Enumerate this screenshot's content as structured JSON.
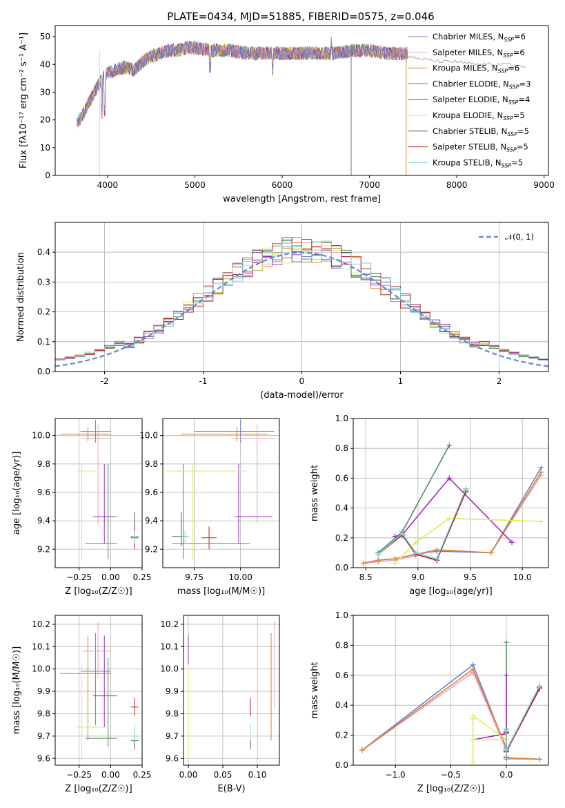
{
  "figure_title": "PLATE=0434, MJD=51885, FIBERID=0575, z=0.046",
  "colors": [
    "#6b7fd0",
    "#e9a0c0",
    "#d9822b",
    "#4f8a5b",
    "#9a2bb5",
    "#d8ee5a",
    "#555555",
    "#b52020",
    "#7fd4e0"
  ],
  "chart_data": [
    {
      "id": "spectrum",
      "type": "line",
      "xlabel": "wavelength [Angstrom, rest frame]",
      "ylabel": "Flux [fλ10⁻¹⁷ erg cm⁻² s⁻¹ A⁻¹]",
      "xlim": [
        3400,
        9050
      ],
      "ylim": [
        0,
        54
      ],
      "xticks": [
        4000,
        5000,
        6000,
        7000,
        8000,
        9000
      ],
      "yticks": [
        0,
        10,
        20,
        30,
        40,
        50
      ],
      "grid": false,
      "legend": "top-right",
      "continuum_x": [
        3650,
        3700,
        3800,
        3900,
        4000,
        4100,
        4200,
        4300,
        4400,
        4500,
        4600,
        4700,
        4800,
        4900,
        5000,
        5200,
        5400,
        5600,
        5800,
        6000,
        6200,
        6400,
        6600,
        6800,
        7000,
        7200,
        7400
      ],
      "continuum_y": [
        19,
        21,
        27,
        33,
        37,
        38,
        39,
        38,
        41,
        43,
        44,
        45,
        45,
        46,
        46,
        45,
        45,
        44,
        44,
        44,
        44,
        44,
        44,
        45,
        45,
        44,
        44
      ],
      "model_x": [
        7400,
        7600,
        7800,
        8000,
        8200,
        8400,
        8600,
        8800
      ],
      "model_y": [
        43,
        42,
        41,
        41,
        40,
        40,
        40,
        39
      ],
      "series": [
        {
          "name": "Chabrier MILES, N",
          "sub": "SSP",
          "suffix": "=6"
        },
        {
          "name": "Salpeter MILES, N",
          "sub": "SSP",
          "suffix": "=6"
        },
        {
          "name": "Kroupa MILES, N",
          "sub": "SSP",
          "suffix": "=6"
        },
        {
          "name": "Chabrier ELODIE, N",
          "sub": "SSP",
          "suffix": "=3"
        },
        {
          "name": "Salpeter ELODIE, N",
          "sub": "SSP",
          "suffix": "=4"
        },
        {
          "name": "Kroupa ELODIE, N",
          "sub": "SSP",
          "suffix": "=5"
        },
        {
          "name": "Chabrier STELIB, N",
          "sub": "SSP",
          "suffix": "=5"
        },
        {
          "name": "Salpeter STELIB, N",
          "sub": "SSP",
          "suffix": "=5"
        },
        {
          "name": "Kroupa STELIB, N",
          "sub": "SSP",
          "suffix": "=5"
        }
      ]
    },
    {
      "id": "residuals",
      "type": "bar",
      "xlabel": "(data-model)/error",
      "ylabel": "Normed distribution",
      "xlim": [
        -2.5,
        2.5
      ],
      "ylim": [
        0,
        0.5
      ],
      "xticks": [
        -2,
        -1,
        0,
        1,
        2
      ],
      "yticks": [
        0.0,
        0.1,
        0.2,
        0.3,
        0.4
      ],
      "grid": true,
      "legend": "top-right",
      "normal_label": "𝒩(0, 1)",
      "bin_width": 0.1
    },
    {
      "id": "age_vs_Z",
      "type": "scatter",
      "xlabel": "Z [log₁₀(Z/Z☉)]",
      "ylabel": "age  [log₁₀(age/yr)]",
      "xlim": [
        -0.44,
        0.25
      ],
      "ylim": [
        9.07,
        10.12
      ],
      "xticks": [
        -0.25,
        0.0,
        0.25
      ],
      "xticklabels": [
        "−0.25",
        "0.00",
        "0.25"
      ],
      "yticks": [
        9.2,
        9.4,
        9.6,
        9.8,
        10.0
      ],
      "grid": true,
      "points": [
        {
          "c": 0,
          "x": -0.12,
          "y": 10.03,
          "xl": -0.24,
          "xh": 0.0,
          "yl": 9.95,
          "yh": 10.11
        },
        {
          "c": 1,
          "x": -0.1,
          "y": 9.98,
          "xl": -0.22,
          "xh": 0.0,
          "yl": 9.38,
          "yh": 10.08
        },
        {
          "c": 2,
          "x": -0.18,
          "y": 10.01,
          "xl": -0.4,
          "xh": 0.0,
          "yl": 9.96,
          "yh": 10.06
        },
        {
          "c": 3,
          "x": -0.02,
          "y": 9.24,
          "xl": -0.2,
          "xh": 0.05,
          "yl": 9.13,
          "yh": 9.8
        },
        {
          "c": 4,
          "x": -0.05,
          "y": 9.43,
          "xl": -0.14,
          "xh": 0.05,
          "yl": 9.24,
          "yh": 9.8
        },
        {
          "c": 5,
          "x": -0.23,
          "y": 9.75,
          "xl": -0.27,
          "xh": -0.12,
          "yl": 9.12,
          "yh": 9.8
        },
        {
          "c": 6,
          "x": 0.19,
          "y": 9.29,
          "xl": 0.16,
          "xh": 0.22,
          "yl": 9.22,
          "yh": 9.46
        },
        {
          "c": 7,
          "x": 0.19,
          "y": 9.28,
          "xl": 0.16,
          "xh": 0.22,
          "yl": 9.2,
          "yh": 9.36
        },
        {
          "c": 8,
          "x": 0.19,
          "y": 9.29,
          "xl": 0.17,
          "xh": 0.21,
          "yl": 9.24,
          "yh": 9.33
        }
      ]
    },
    {
      "id": "age_vs_mass",
      "type": "scatter",
      "xlabel": "mass [log₁₀(M/M☉)]",
      "ylabel": "",
      "xlim": [
        9.58,
        10.21
      ],
      "ylim": [
        9.07,
        10.12
      ],
      "xticks": [
        9.75,
        10.0
      ],
      "xticklabels": [
        "9.75",
        "10.00"
      ],
      "yticks": [
        9.2,
        9.4,
        9.6,
        9.8,
        10.0
      ],
      "grid": true,
      "points": [
        {
          "c": 0,
          "x": 10.0,
          "y": 10.03,
          "xl": 9.75,
          "xh": 10.18,
          "yl": 9.95,
          "yh": 10.11
        },
        {
          "c": 1,
          "x": 10.09,
          "y": 9.98,
          "xl": 9.95,
          "xh": 10.19,
          "yl": 9.38,
          "yh": 10.08
        },
        {
          "c": 2,
          "x": 9.98,
          "y": 10.01,
          "xl": 9.68,
          "xh": 10.15,
          "yl": 9.96,
          "yh": 10.06
        },
        {
          "c": 3,
          "x": 9.69,
          "y": 9.24,
          "xl": 9.63,
          "xh": 10.05,
          "yl": 9.13,
          "yh": 9.8
        },
        {
          "c": 4,
          "x": 9.99,
          "y": 9.43,
          "xl": 9.97,
          "xh": 10.17,
          "yl": 9.24,
          "yh": 9.8
        },
        {
          "c": 5,
          "x": 9.74,
          "y": 9.75,
          "xl": 9.6,
          "xh": 10.03,
          "yl": 9.12,
          "yh": 9.8
        },
        {
          "c": 6,
          "x": 9.68,
          "y": 9.29,
          "xl": 9.63,
          "xh": 9.72,
          "yl": 9.22,
          "yh": 9.46
        },
        {
          "c": 7,
          "x": 9.83,
          "y": 9.28,
          "xl": 9.79,
          "xh": 9.87,
          "yl": 9.2,
          "yh": 9.36
        },
        {
          "c": 8,
          "x": 9.7,
          "y": 9.29,
          "xl": 9.68,
          "xh": 9.72,
          "yl": 9.24,
          "yh": 9.33
        }
      ]
    },
    {
      "id": "weight_vs_age",
      "type": "line",
      "xlabel": "age  [log₁₀(age/yr)]",
      "ylabel": "mass weight",
      "xlim": [
        8.38,
        10.25
      ],
      "ylim": [
        0,
        1
      ],
      "xticks": [
        8.5,
        9.0,
        9.5,
        10.0
      ],
      "xticklabels": [
        "8.5",
        "9.0",
        "9.5",
        "10.0"
      ],
      "yticks": [
        0.0,
        0.2,
        0.4,
        0.6,
        0.8,
        1.0
      ],
      "grid": true,
      "series": [
        {
          "c": 0,
          "x": [
            8.48,
            8.62,
            8.78,
            8.98,
            9.18,
            9.7,
            10.18
          ],
          "y": [
            0.03,
            0.05,
            0.06,
            0.09,
            0.11,
            0.1,
            0.67
          ]
        },
        {
          "c": 1,
          "x": [
            8.48,
            8.62,
            8.78,
            8.98,
            9.18,
            9.7,
            10.18
          ],
          "y": [
            0.03,
            0.04,
            0.05,
            0.08,
            0.12,
            0.1,
            0.62
          ]
        },
        {
          "c": 2,
          "x": [
            8.48,
            8.62,
            8.78,
            8.98,
            9.18,
            9.7,
            10.18
          ],
          "y": [
            0.03,
            0.05,
            0.06,
            0.09,
            0.12,
            0.1,
            0.64
          ]
        },
        {
          "c": 3,
          "x": [
            8.62,
            8.85,
            9.3
          ],
          "y": [
            0.1,
            0.24,
            0.82
          ]
        },
        {
          "c": 4,
          "x": [
            8.78,
            8.85,
            9.3,
            9.9
          ],
          "y": [
            0.21,
            0.22,
            0.6,
            0.17
          ]
        },
        {
          "c": 5,
          "x": [
            8.78,
            8.98,
            9.3,
            10.18
          ],
          "y": [
            0.03,
            0.17,
            0.33,
            0.31
          ]
        },
        {
          "c": 6,
          "x": [
            8.62,
            8.85,
            8.98,
            9.18,
            9.46
          ],
          "y": [
            0.09,
            0.22,
            0.09,
            0.05,
            0.52
          ]
        },
        {
          "c": 7,
          "x": [
            8.62,
            8.85,
            8.98,
            9.18,
            9.46
          ],
          "y": [
            0.09,
            0.22,
            0.09,
            0.05,
            0.51
          ]
        },
        {
          "c": 8,
          "x": [
            8.62,
            8.85,
            8.98,
            9.18,
            9.46
          ],
          "y": [
            0.09,
            0.23,
            0.1,
            0.06,
            0.53
          ]
        }
      ]
    },
    {
      "id": "mass_vs_Z",
      "type": "scatter",
      "xlabel": "Z [log₁₀(Z/Z☉)]",
      "ylabel": "mass [log₁₀(M/M☉)]",
      "xlim": [
        -0.44,
        0.25
      ],
      "ylim": [
        9.57,
        10.24
      ],
      "xticks": [
        -0.25,
        0.0,
        0.25
      ],
      "xticklabels": [
        "−0.25",
        "0.00",
        "0.25"
      ],
      "yticks": [
        9.6,
        9.7,
        9.8,
        9.9,
        10.0,
        10.1,
        10.2
      ],
      "grid": true,
      "points": [
        {
          "c": 0,
          "x": -0.12,
          "y": 9.99,
          "xl": -0.24,
          "xh": 0.0,
          "yl": 9.75,
          "yh": 10.16
        },
        {
          "c": 1,
          "x": -0.1,
          "y": 10.08,
          "xl": -0.22,
          "xh": 0.0,
          "yl": 9.96,
          "yh": 10.21
        },
        {
          "c": 2,
          "x": -0.18,
          "y": 9.98,
          "xl": -0.4,
          "xh": 0.0,
          "yl": 9.68,
          "yh": 10.15
        },
        {
          "c": 3,
          "x": -0.02,
          "y": 9.69,
          "xl": -0.2,
          "xh": 0.05,
          "yl": 9.65,
          "yh": 10.05
        },
        {
          "c": 4,
          "x": -0.05,
          "y": 9.88,
          "xl": -0.14,
          "xh": 0.05,
          "yl": 9.74,
          "yh": 10.15
        },
        {
          "c": 5,
          "x": -0.23,
          "y": 9.74,
          "xl": -0.27,
          "xh": -0.05,
          "yl": 9.59,
          "yh": 10.02
        },
        {
          "c": 6,
          "x": 0.19,
          "y": 9.68,
          "xl": 0.16,
          "xh": 0.22,
          "yl": 9.64,
          "yh": 9.72
        },
        {
          "c": 7,
          "x": 0.19,
          "y": 9.83,
          "xl": 0.16,
          "xh": 0.22,
          "yl": 9.79,
          "yh": 9.87
        },
        {
          "c": 8,
          "x": 0.19,
          "y": 9.7,
          "xl": 0.17,
          "xh": 0.21,
          "yl": 9.68,
          "yh": 9.75
        }
      ]
    },
    {
      "id": "mass_vs_EBV",
      "type": "scatter",
      "xlabel": "E(B-V)",
      "ylabel": "",
      "xlim": [
        -0.007,
        0.132
      ],
      "ylim": [
        9.57,
        10.24
      ],
      "xticks": [
        0.0,
        0.05,
        0.1
      ],
      "xticklabels": [
        "0.00",
        "0.05",
        "0.10"
      ],
      "yticks": [
        9.6,
        9.7,
        9.8,
        9.9,
        10.0,
        10.1,
        10.2
      ],
      "grid": true,
      "points": [
        {
          "c": 0,
          "x": 0.12,
          "y": 9.99,
          "yl": 9.75,
          "yh": 10.16
        },
        {
          "c": 1,
          "x": 0.125,
          "y": 10.08,
          "yl": 9.82,
          "yh": 10.21
        },
        {
          "c": 2,
          "x": 0.12,
          "y": 9.98,
          "yl": 9.68,
          "yh": 10.15
        },
        {
          "c": 3,
          "x": 0.0,
          "y": 9.69,
          "yl": 9.59,
          "yh": 10.05
        },
        {
          "c": 4,
          "x": 0.0,
          "y": 9.88,
          "yl": 9.74,
          "yh": 10.15
        },
        {
          "c": 5,
          "x": 0.0,
          "y": 9.74,
          "yl": 9.59,
          "yh": 10.02
        },
        {
          "c": 6,
          "x": 0.09,
          "y": 9.68,
          "yl": 9.64,
          "yh": 9.72
        },
        {
          "c": 7,
          "x": 0.09,
          "y": 9.83,
          "yl": 9.79,
          "yh": 9.87
        },
        {
          "c": 8,
          "x": 0.09,
          "y": 9.7,
          "yl": 9.68,
          "yh": 9.75
        }
      ]
    },
    {
      "id": "weight_vs_Z",
      "type": "line",
      "xlabel": "Z [log₁₀(Z/Z☉)]",
      "ylabel": "mass weight",
      "xlim": [
        -1.38,
        0.38
      ],
      "ylim": [
        0,
        1
      ],
      "xticks": [
        -1.0,
        -0.5,
        0.0
      ],
      "xticklabels": [
        "−1.0",
        "−0.5",
        "0.0"
      ],
      "yticks": [
        0.0,
        0.2,
        0.4,
        0.6,
        0.8,
        1.0
      ],
      "grid": true,
      "series": [
        {
          "c": 0,
          "x": [
            -1.3,
            -0.3,
            0.0,
            0.0,
            0.3
          ],
          "y": [
            0.1,
            0.67,
            0.11,
            0.05,
            0.04
          ]
        },
        {
          "c": 1,
          "x": [
            -1.3,
            -0.3,
            0.0,
            0.0,
            0.3
          ],
          "y": [
            0.1,
            0.62,
            0.1,
            0.04,
            0.04
          ]
        },
        {
          "c": 2,
          "x": [
            -1.3,
            -0.3,
            0.0,
            0.0,
            0.3
          ],
          "y": [
            0.1,
            0.64,
            0.12,
            0.05,
            0.04
          ]
        },
        {
          "c": 3,
          "x": [
            0.0,
            0.0,
            0.0
          ],
          "y": [
            0.82,
            0.24,
            0.1
          ]
        },
        {
          "c": 4,
          "x": [
            -0.3,
            0.0,
            0.0,
            0.0
          ],
          "y": [
            0.17,
            0.21,
            0.6,
            0.22
          ]
        },
        {
          "c": 5,
          "x": [
            -0.3,
            -0.3,
            0.0,
            -0.3,
            -0.3
          ],
          "y": [
            0.02,
            0.33,
            0.17,
            0.17,
            0.31
          ]
        },
        {
          "c": 6,
          "x": [
            0.0,
            0.0,
            0.0,
            0.0,
            0.3
          ],
          "y": [
            0.22,
            0.09,
            0.05,
            0.09,
            0.52
          ]
        },
        {
          "c": 7,
          "x": [
            0.0,
            0.0,
            0.0,
            0.0,
            0.3
          ],
          "y": [
            0.22,
            0.09,
            0.05,
            0.09,
            0.51
          ]
        },
        {
          "c": 8,
          "x": [
            0.0,
            0.0,
            0.0,
            0.0,
            0.3
          ],
          "y": [
            0.23,
            0.1,
            0.06,
            0.1,
            0.53
          ]
        }
      ]
    }
  ]
}
